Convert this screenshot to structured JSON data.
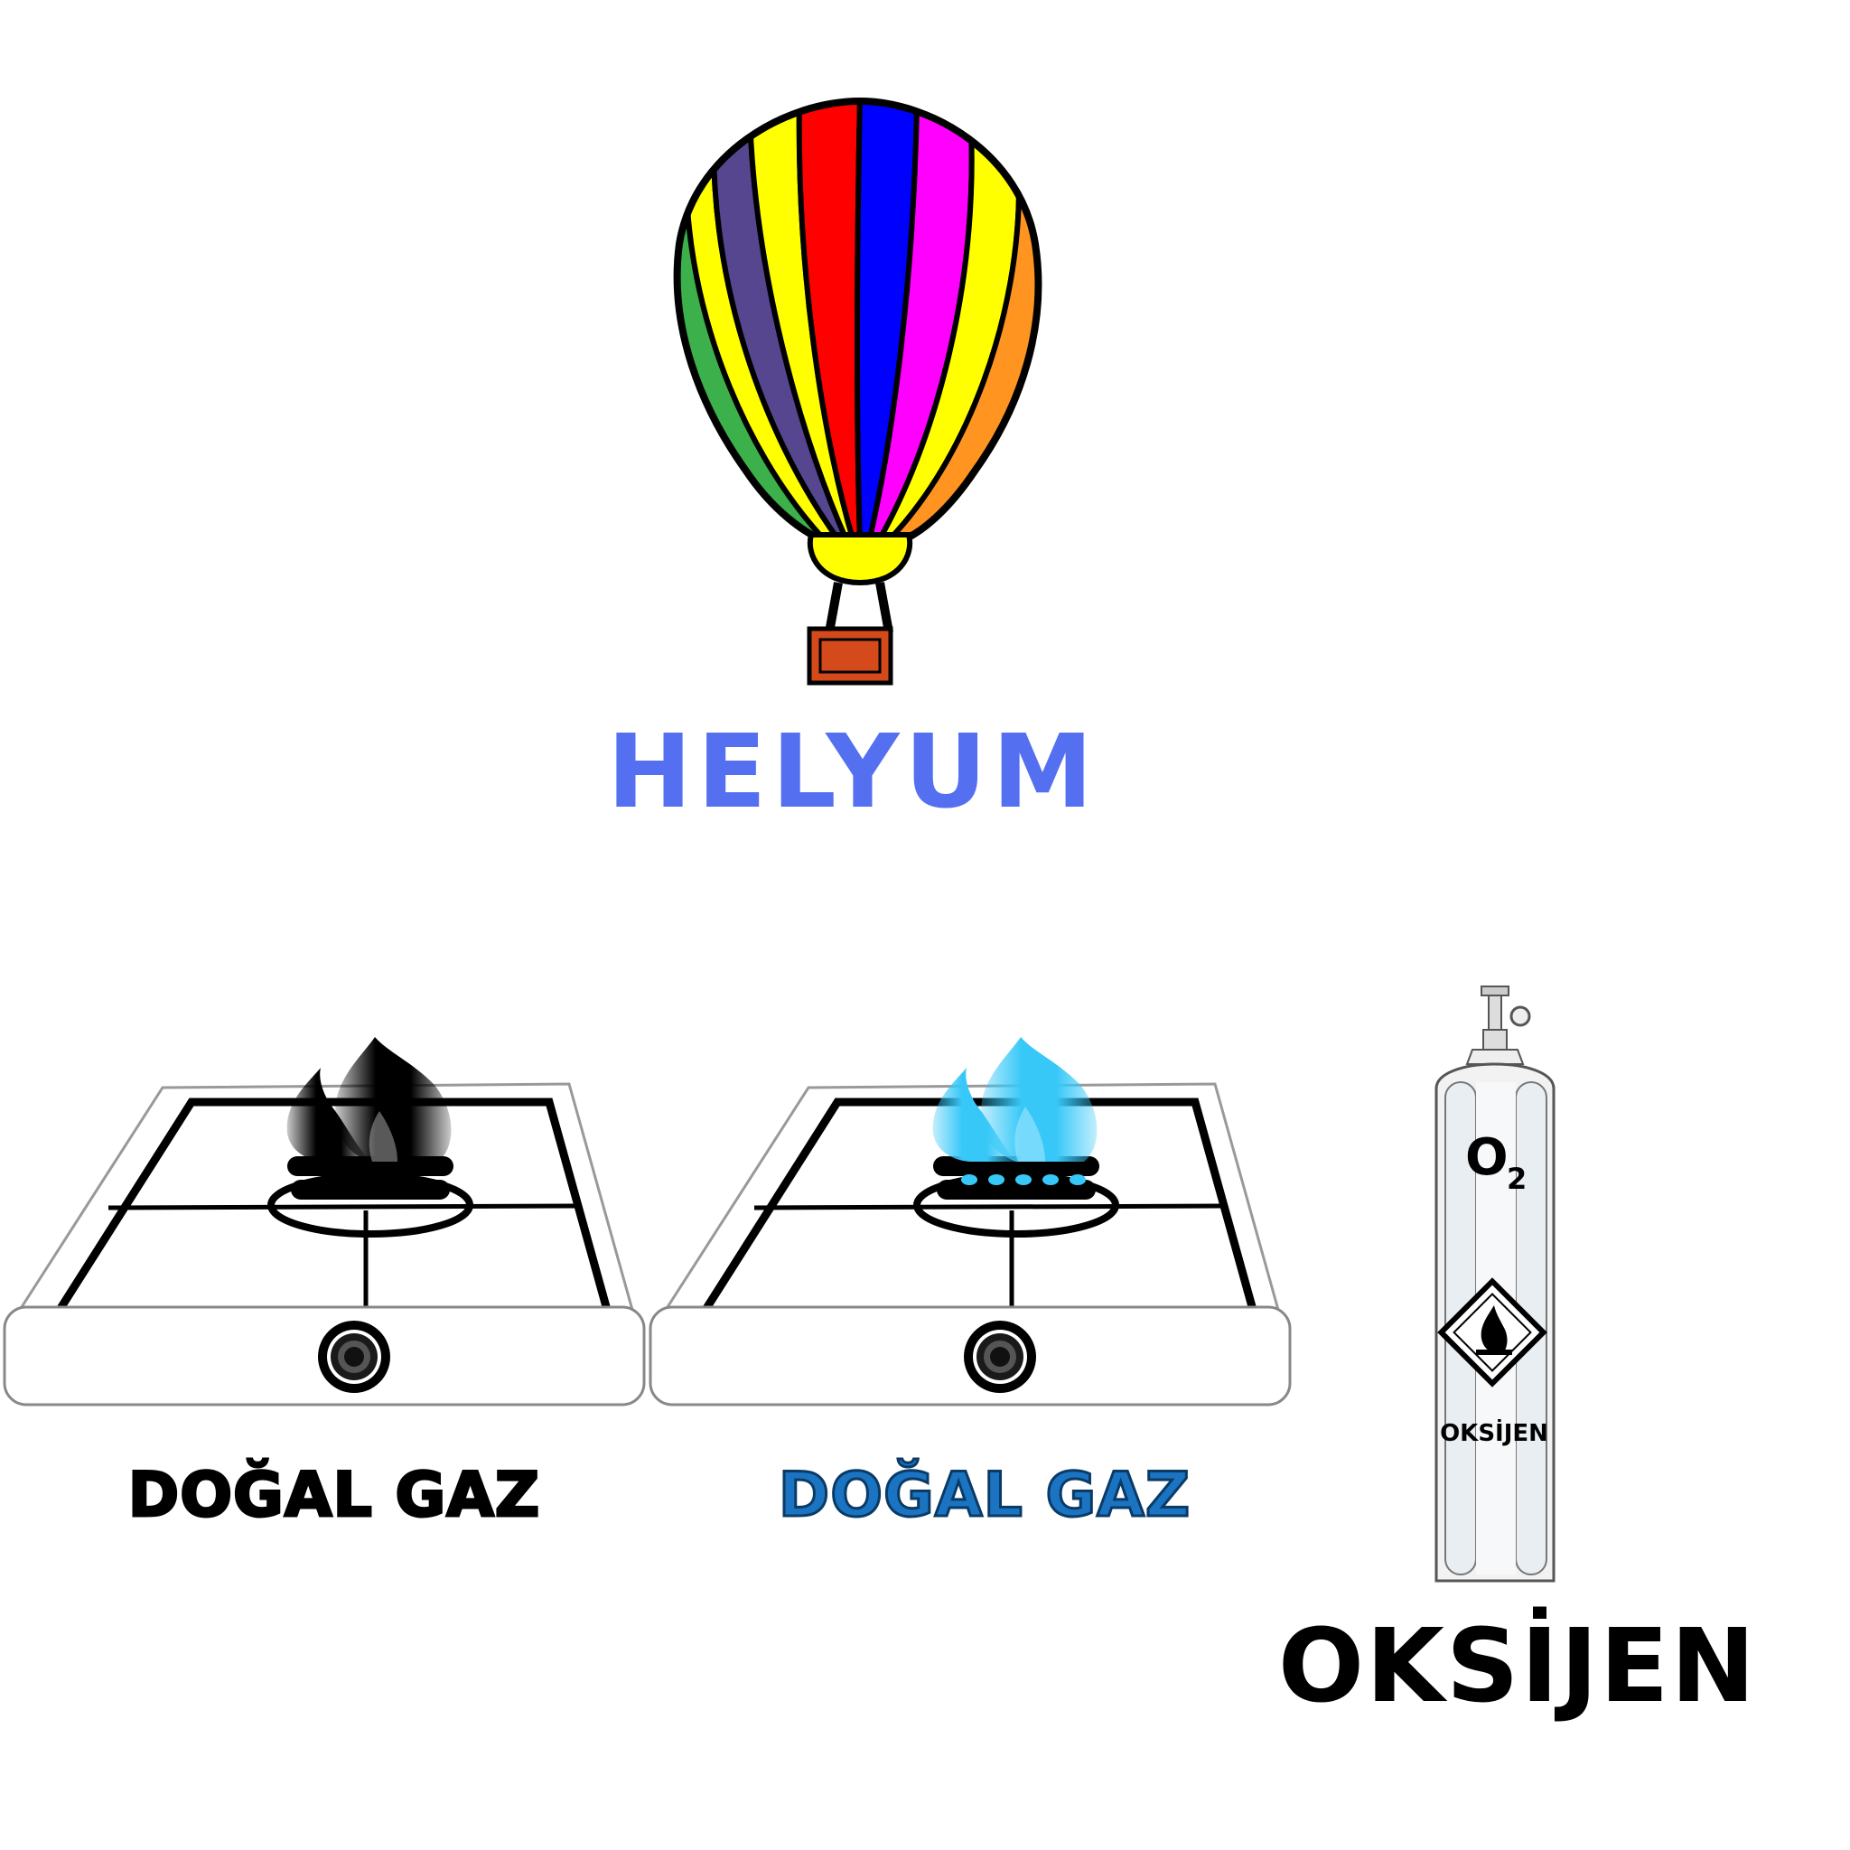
{
  "helium": {
    "label": "HELYUM",
    "color": "#5470f0"
  },
  "stoves": [
    {
      "label": "DOĞAL GAZ",
      "label_color": "#000000",
      "flame_color": "#000000",
      "icon": "black-flame-icon"
    },
    {
      "label": "DOĞAL GAZ",
      "label_color": "#1a74c2",
      "flame_color": "#38c8f8",
      "icon": "blue-flame-icon"
    }
  ],
  "oxygen": {
    "label": "OKSİJEN",
    "cylinder_formula_main": "O",
    "cylinder_formula_sub": "2",
    "cylinder_text": "OKSİJEN",
    "icon": "flammable-diamond-icon"
  },
  "balloon_colors": [
    "#3cb04a",
    "#ffff00",
    "#56468f",
    "#ffff00",
    "#ff0000",
    "#0000ff",
    "#ff00ff",
    "#ffff00",
    "#ff9420"
  ]
}
